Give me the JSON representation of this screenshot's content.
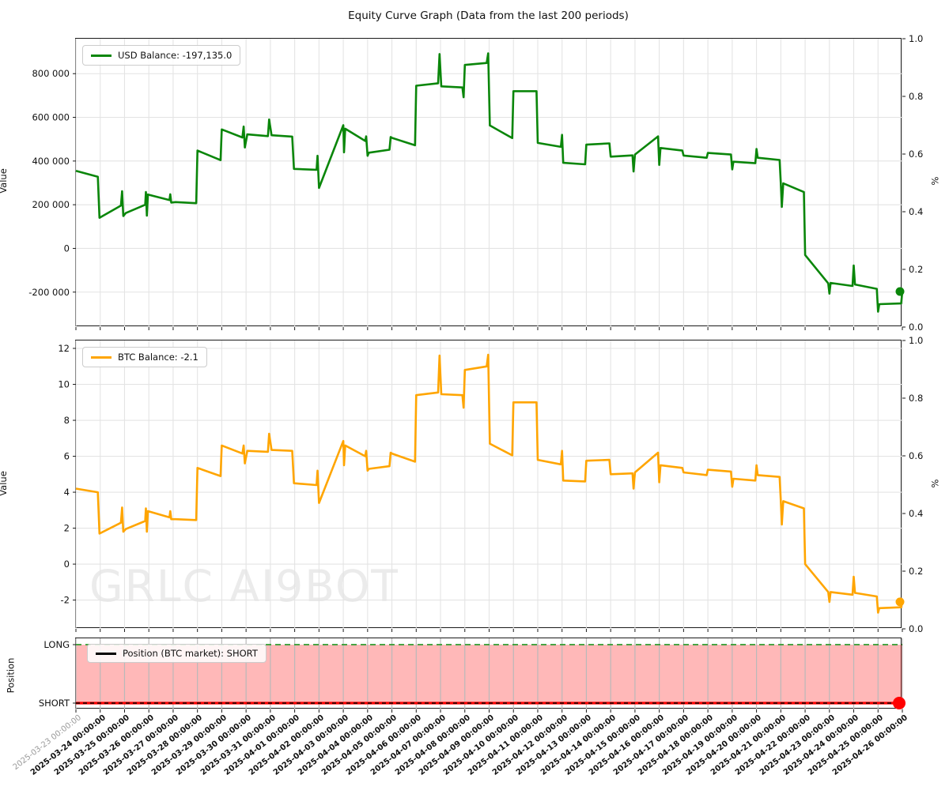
{
  "title": "Equity Curve Graph (Data from the last 200 periods)",
  "watermark": "GRLC AI9BOT",
  "x_axis": {
    "dates": [
      "2025-03-23 00:00:00",
      "2025-03-24 00:00:00",
      "2025-03-25 00:00:00",
      "2025-03-26 00:00:00",
      "2025-03-27 00:00:00",
      "2025-03-28 00:00:00",
      "2025-03-29 00:00:00",
      "2025-03-30 00:00:00",
      "2025-03-31 00:00:00",
      "2025-04-01 00:00:00",
      "2025-04-02 00:00:00",
      "2025-04-03 00:00:00",
      "2025-04-04 00:00:00",
      "2025-04-05 00:00:00",
      "2025-04-06 00:00:00",
      "2025-04-07 00:00:00",
      "2025-04-08 00:00:00",
      "2025-04-09 00:00:00",
      "2025-04-10 00:00:00",
      "2025-04-11 00:00:00",
      "2025-04-12 00:00:00",
      "2025-04-13 00:00:00",
      "2025-04-14 00:00:00",
      "2025-04-15 00:00:00",
      "2025-04-16 00:00:00",
      "2025-04-17 00:00:00",
      "2025-04-18 00:00:00",
      "2025-04-19 00:00:00",
      "2025-04-20 00:00:00",
      "2025-04-21 00:00:00",
      "2025-04-22 00:00:00",
      "2025-04-23 00:00:00",
      "2025-04-24 00:00:00",
      "2025-04-25 00:00:00",
      "2025-04-26 00:00:00"
    ],
    "muted_first_label": true
  },
  "chart_data": [
    {
      "name": "usd_balance",
      "type": "line",
      "legend": "USD Balance: -197,135.0",
      "color": "#0a860a",
      "ylabel": "Value",
      "y2label": "%",
      "ylim": [
        -360000,
        960000
      ],
      "xlim_days": [
        0,
        34
      ],
      "yticks": [
        [
          800000,
          "800 000"
        ],
        [
          600000,
          "600 000"
        ],
        [
          400000,
          "400 000"
        ],
        [
          200000,
          "200 000"
        ],
        [
          0,
          "0"
        ],
        [
          -200000,
          "-200 000"
        ]
      ],
      "y2ticks": [
        "1.0",
        "0.8",
        "0.6",
        "0.4",
        "0.2",
        "0.0"
      ],
      "grid": true,
      "end_marker": true,
      "points": [
        [
          0.0,
          355000
        ],
        [
          0.9,
          328000
        ],
        [
          0.97,
          140000
        ],
        [
          1.85,
          196000
        ],
        [
          1.9,
          262000
        ],
        [
          1.95,
          148000
        ],
        [
          2.05,
          162000
        ],
        [
          2.85,
          200000
        ],
        [
          2.88,
          258000
        ],
        [
          2.92,
          150000
        ],
        [
          2.96,
          247000
        ],
        [
          3.85,
          221000
        ],
        [
          3.88,
          248000
        ],
        [
          3.92,
          210000
        ],
        [
          4.1,
          212000
        ],
        [
          4.95,
          207000
        ],
        [
          5.0,
          448000
        ],
        [
          5.95,
          404000
        ],
        [
          6.0,
          545000
        ],
        [
          6.85,
          508000
        ],
        [
          6.9,
          558000
        ],
        [
          6.95,
          462000
        ],
        [
          7.05,
          522000
        ],
        [
          7.9,
          514000
        ],
        [
          7.95,
          590000
        ],
        [
          8.05,
          518000
        ],
        [
          8.9,
          512000
        ],
        [
          8.97,
          364000
        ],
        [
          9.9,
          360000
        ],
        [
          9.94,
          424000
        ],
        [
          10.0,
          277000
        ],
        [
          11.0,
          564000
        ],
        [
          11.03,
          440000
        ],
        [
          11.08,
          548000
        ],
        [
          11.9,
          492000
        ],
        [
          11.94,
          513000
        ],
        [
          12.0,
          424000
        ],
        [
          12.05,
          438000
        ],
        [
          12.9,
          452000
        ],
        [
          12.95,
          510000
        ],
        [
          13.0,
          506000
        ],
        [
          13.95,
          472000
        ],
        [
          14.0,
          745000
        ],
        [
          14.9,
          756000
        ],
        [
          14.96,
          890000
        ],
        [
          15.03,
          742000
        ],
        [
          15.9,
          737000
        ],
        [
          15.95,
          692000
        ],
        [
          16.0,
          840000
        ],
        [
          16.9,
          849000
        ],
        [
          16.96,
          893000
        ],
        [
          17.03,
          563000
        ],
        [
          17.95,
          505000
        ],
        [
          18.0,
          720000
        ],
        [
          18.95,
          720000
        ],
        [
          19.0,
          483000
        ],
        [
          19.95,
          465000
        ],
        [
          20.0,
          520000
        ],
        [
          20.05,
          392000
        ],
        [
          20.95,
          385000
        ],
        [
          21.0,
          475000
        ],
        [
          21.95,
          481000
        ],
        [
          22.0,
          420000
        ],
        [
          22.9,
          426000
        ],
        [
          22.94,
          352000
        ],
        [
          23.0,
          430000
        ],
        [
          23.95,
          513000
        ],
        [
          24.0,
          382000
        ],
        [
          24.05,
          460000
        ],
        [
          24.95,
          448000
        ],
        [
          25.0,
          425000
        ],
        [
          25.95,
          415000
        ],
        [
          26.0,
          437000
        ],
        [
          26.95,
          430000
        ],
        [
          27.0,
          362000
        ],
        [
          27.05,
          397000
        ],
        [
          27.95,
          390000
        ],
        [
          28.0,
          455000
        ],
        [
          28.05,
          415000
        ],
        [
          28.95,
          405000
        ],
        [
          29.0,
          300000
        ],
        [
          29.04,
          190000
        ],
        [
          29.1,
          298000
        ],
        [
          29.95,
          258000
        ],
        [
          30.0,
          -30000
        ],
        [
          30.95,
          -160000
        ],
        [
          31.0,
          -207000
        ],
        [
          31.05,
          -158000
        ],
        [
          31.95,
          -172000
        ],
        [
          32.0,
          -78000
        ],
        [
          32.05,
          -165000
        ],
        [
          32.95,
          -185000
        ],
        [
          33.0,
          -290000
        ],
        [
          33.05,
          -255000
        ],
        [
          33.95,
          -252000
        ],
        [
          34.0,
          -197135
        ]
      ]
    },
    {
      "name": "btc_balance",
      "type": "line",
      "legend": "BTC Balance: -2.1",
      "color": "#ffa500",
      "ylabel": "Value",
      "y2label": "%",
      "ylim": [
        -3.6,
        12.44
      ],
      "xlim_days": [
        0,
        34
      ],
      "yticks": [
        [
          12,
          "12"
        ],
        [
          10,
          "10"
        ],
        [
          8,
          "8"
        ],
        [
          6,
          "6"
        ],
        [
          4,
          "4"
        ],
        [
          2,
          "2"
        ],
        [
          0,
          "0"
        ],
        [
          -2,
          "-2"
        ]
      ],
      "y2ticks": [
        "1.0",
        "0.8",
        "0.6",
        "0.4",
        "0.2",
        "0.0"
      ],
      "grid": true,
      "end_marker": true,
      "points": [
        [
          0.0,
          4.2
        ],
        [
          0.9,
          4.0
        ],
        [
          0.97,
          1.7
        ],
        [
          1.85,
          2.3
        ],
        [
          1.9,
          3.15
        ],
        [
          1.95,
          1.8
        ],
        [
          2.05,
          1.95
        ],
        [
          2.85,
          2.4
        ],
        [
          2.88,
          3.1
        ],
        [
          2.92,
          1.8
        ],
        [
          2.96,
          2.95
        ],
        [
          3.85,
          2.6
        ],
        [
          3.88,
          2.95
        ],
        [
          3.92,
          2.5
        ],
        [
          4.1,
          2.5
        ],
        [
          4.95,
          2.45
        ],
        [
          5.0,
          5.35
        ],
        [
          5.95,
          4.9
        ],
        [
          6.0,
          6.6
        ],
        [
          6.85,
          6.15
        ],
        [
          6.9,
          6.6
        ],
        [
          6.95,
          5.6
        ],
        [
          7.05,
          6.3
        ],
        [
          7.9,
          6.25
        ],
        [
          7.95,
          7.25
        ],
        [
          8.05,
          6.35
        ],
        [
          8.9,
          6.3
        ],
        [
          8.97,
          4.5
        ],
        [
          9.9,
          4.4
        ],
        [
          9.94,
          5.2
        ],
        [
          10.0,
          3.4
        ],
        [
          11.0,
          6.85
        ],
        [
          11.03,
          5.5
        ],
        [
          11.08,
          6.6
        ],
        [
          11.9,
          6.0
        ],
        [
          11.94,
          6.3
        ],
        [
          12.0,
          5.2
        ],
        [
          12.05,
          5.3
        ],
        [
          12.9,
          5.45
        ],
        [
          12.95,
          6.2
        ],
        [
          13.0,
          6.15
        ],
        [
          13.95,
          5.7
        ],
        [
          14.0,
          9.4
        ],
        [
          14.9,
          9.55
        ],
        [
          14.96,
          11.6
        ],
        [
          15.03,
          9.45
        ],
        [
          15.9,
          9.4
        ],
        [
          15.95,
          8.7
        ],
        [
          16.0,
          10.8
        ],
        [
          16.9,
          11.0
        ],
        [
          16.96,
          11.65
        ],
        [
          17.03,
          6.7
        ],
        [
          17.95,
          6.05
        ],
        [
          18.0,
          9.0
        ],
        [
          18.95,
          9.0
        ],
        [
          19.0,
          5.8
        ],
        [
          19.95,
          5.55
        ],
        [
          20.0,
          6.3
        ],
        [
          20.05,
          4.65
        ],
        [
          20.95,
          4.6
        ],
        [
          21.0,
          5.75
        ],
        [
          21.95,
          5.8
        ],
        [
          22.0,
          5.0
        ],
        [
          22.9,
          5.05
        ],
        [
          22.94,
          4.2
        ],
        [
          23.0,
          5.1
        ],
        [
          23.95,
          6.2
        ],
        [
          24.0,
          4.55
        ],
        [
          24.05,
          5.5
        ],
        [
          24.95,
          5.35
        ],
        [
          25.0,
          5.1
        ],
        [
          25.95,
          4.95
        ],
        [
          26.0,
          5.25
        ],
        [
          26.95,
          5.15
        ],
        [
          27.0,
          4.3
        ],
        [
          27.05,
          4.75
        ],
        [
          27.95,
          4.65
        ],
        [
          28.0,
          5.5
        ],
        [
          28.05,
          4.95
        ],
        [
          28.95,
          4.85
        ],
        [
          29.0,
          3.55
        ],
        [
          29.04,
          2.2
        ],
        [
          29.1,
          3.5
        ],
        [
          29.95,
          3.1
        ],
        [
          30.0,
          0.0
        ],
        [
          30.95,
          -1.55
        ],
        [
          31.0,
          -2.1
        ],
        [
          31.05,
          -1.55
        ],
        [
          31.95,
          -1.7
        ],
        [
          32.0,
          -0.7
        ],
        [
          32.05,
          -1.6
        ],
        [
          32.95,
          -1.8
        ],
        [
          33.0,
          -2.7
        ],
        [
          33.05,
          -2.45
        ],
        [
          33.95,
          -2.4
        ],
        [
          34.0,
          -2.1
        ]
      ]
    },
    {
      "name": "position",
      "type": "band",
      "legend": "Position (BTC market): SHORT",
      "ylabel": "Position",
      "position_state": "SHORT",
      "yticks": [
        "LONG",
        "SHORT"
      ],
      "band_fractions": {
        "long": 0.089,
        "short": 0.911
      },
      "colors": {
        "fill": "rgba(255,0,0,0.28)",
        "long_line": "#2e9b2e",
        "short_line": "#ff0000",
        "position_line": "#000000",
        "end_dot": "#ff0000",
        "grid": "#b9b9b9"
      }
    }
  ],
  "style": {
    "grid_color": "#e4e4e4",
    "spine_color": "#1a1a1a",
    "tick_color": "#1a1a1a",
    "tick_label_color": "#111111",
    "muted_label_color": "#9a9a9a"
  }
}
